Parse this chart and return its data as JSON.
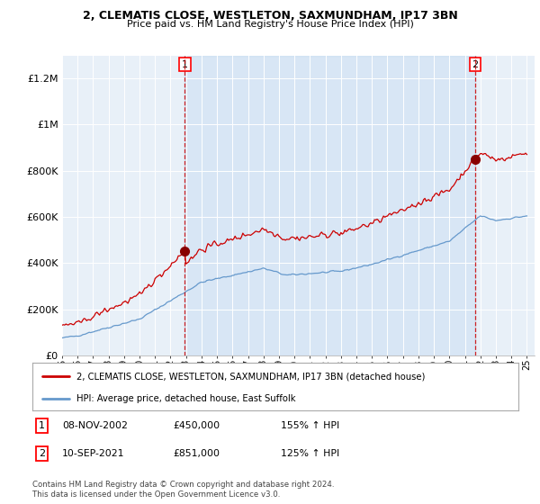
{
  "title1": "2, CLEMATIS CLOSE, WESTLETON, SAXMUNDHAM, IP17 3BN",
  "title2": "Price paid vs. HM Land Registry's House Price Index (HPI)",
  "legend_line1": "2, CLEMATIS CLOSE, WESTLETON, SAXMUNDHAM, IP17 3BN (detached house)",
  "legend_line2": "HPI: Average price, detached house, East Suffolk",
  "footnote": "Contains HM Land Registry data © Crown copyright and database right 2024.\nThis data is licensed under the Open Government Licence v3.0.",
  "table": [
    {
      "num": "1",
      "date": "08-NOV-2002",
      "price": "£450,000",
      "hpi": "155% ↑ HPI"
    },
    {
      "num": "2",
      "date": "10-SEP-2021",
      "price": "£851,000",
      "hpi": "125% ↑ HPI"
    }
  ],
  "sale1_year": 2002.917,
  "sale1_price": 450000,
  "sale2_year": 2021.667,
  "sale2_price": 851000,
  "hpi_line_color": "#6699cc",
  "price_line_color": "#cc0000",
  "vline_color": "#cc0000",
  "marker_color": "#880000",
  "bg_color": "#ddeeff",
  "plot_bg": "#e8f0f8",
  "ylim": [
    0,
    1300000
  ],
  "yticks": [
    0,
    200000,
    400000,
    600000,
    800000,
    1000000,
    1200000
  ],
  "ytick_labels": [
    "£0",
    "£200K",
    "£400K",
    "£600K",
    "£800K",
    "£1M",
    "£1.2M"
  ],
  "xlim_start": 1995.4,
  "xlim_end": 2025.5,
  "n_months": 361
}
